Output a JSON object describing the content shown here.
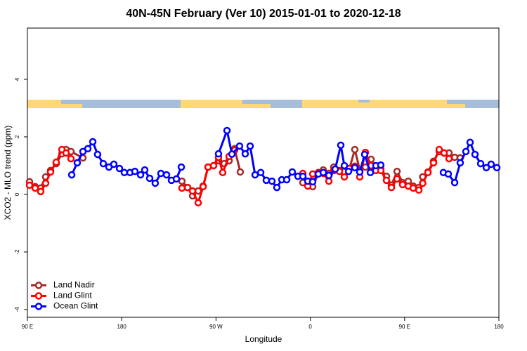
{
  "chart_data": {
    "type": "line",
    "title": "40N-45N February (Ver 10)   2015-01-01 to 2020-12-18",
    "x_label": "Longitude",
    "y_label": "XCO2 - MLO trend (ppm)",
    "xlim": [
      90,
      540
    ],
    "ylim": [
      -4.27,
      5.78
    ],
    "xticks": [
      {
        "value": 90,
        "label": "90 E"
      },
      180,
      {
        "value": 270,
        "label": "90 W"
      },
      {
        "value": 360,
        "label": "0"
      },
      {
        "value": 450,
        "label": "90 E"
      },
      {
        "value": 540,
        "label": "180"
      }
    ],
    "yticks": [
      -4,
      -2,
      0,
      2,
      4
    ],
    "grid": false,
    "legend": "bottomleft",
    "series": [
      {
        "name": "Land Nadir",
        "color": "#a52a2a",
        "x": [
          92,
          97.4,
          102.7,
          107.4,
          112.1,
          117.5,
          122.9,
          126.9,
          131.6,
          143,
          null,
          237.5,
          242.9,
          247.6,
          253,
          257.7,
          262.4,
          267.7,
          272.4,
          277.8,
          282.5,
          287.8,
          293.2,
          null,
          352.9,
          357.6,
          362.3,
          367.7,
          372.4,
          377.7,
          382.4,
          387.8,
          392.5,
          397.2,
          402.5,
          407.2,
          412.6,
          418,
          422.6,
          427.3,
          432.7,
          437.4,
          442.8,
          448.1,
          453.5,
          458.2,
          463.6,
          467.3,
          472.3,
          477.6,
          483,
          487.7,
          492.4,
          497.8,
          503.1
        ],
        "values": [
          0.44,
          0.27,
          0.22,
          0.61,
          0.83,
          1.07,
          1.41,
          1.56,
          1.49,
          1.27,
          null,
          0.46,
          0.24,
          -0.05,
          0.12,
          0.29,
          0.95,
          1.0,
          1.17,
          1.07,
          1.17,
          1.59,
          0.78,
          null,
          0.41,
          0.32,
          0.27,
          0.73,
          0.85,
          0.73,
          0.95,
          0.83,
          0.98,
          0.88,
          1.56,
          0.85,
          0.95,
          1.22,
          0.95,
          0.88,
          0.63,
          0.32,
          0.8,
          0.41,
          0.46,
          0.29,
          0.24,
          0.61,
          0.78,
          1.15,
          1.49,
          1.44,
          1.44,
          1.29,
          1.27
        ]
      },
      {
        "name": "Land Glint",
        "color": "#ff0000",
        "x": [
          92,
          97.4,
          102.7,
          107.4,
          112.1,
          117.5,
          122.9,
          126.9,
          131.6,
          null,
          237.5,
          242.9,
          247.6,
          253,
          257.7,
          262.4,
          267.7,
          272.4,
          276.4,
          282.5,
          287.8,
          null,
          352.9,
          357.6,
          362.3,
          367.7,
          372.4,
          377.7,
          382.4,
          387.8,
          392.5,
          397.2,
          402.5,
          407.2,
          412.6,
          418,
          422.6,
          427.3,
          432.7,
          437.4,
          442.8,
          448.1,
          453.5,
          458.2,
          463.6,
          467.3,
          472.3,
          477.6,
          483,
          487.7,
          492.4
        ],
        "values": [
          0.32,
          0.22,
          0.1,
          0.39,
          0.78,
          1.12,
          1.56,
          1.44,
          1.24,
          null,
          0.22,
          0.24,
          0.12,
          -0.29,
          0.27,
          0.95,
          1.0,
          1.29,
          0.76,
          1.32,
          1.54,
          null,
          0.73,
          0.29,
          0.71,
          0.76,
          0.73,
          0.46,
          0.83,
          0.8,
          0.61,
          0.9,
          0.98,
          0.61,
          1.46,
          1.0,
          0.83,
          0.83,
          0.49,
          0.24,
          0.54,
          0.34,
          0.29,
          0.22,
          0.15,
          0.39,
          0.76,
          1.1,
          1.56,
          1.44,
          1.24
        ]
      },
      {
        "name": "Ocean Glint",
        "color": "#0000ff",
        "x": [
          132.3,
          137.6,
          143,
          147.7,
          152.4,
          157,
          162.4,
          167.8,
          172.5,
          177.9,
          182.5,
          187.9,
          192.6,
          198,
          202,
          206.7,
          212,
          217.4,
          222.8,
          227.5,
          232.2,
          236.9,
          null,
          272.4,
          280.5,
          285.2,
          292.5,
          297.9,
          302.6,
          307.3,
          312.7,
          318,
          323.4,
          328.1,
          332.8,
          337.5,
          342.8,
          348.2,
          352.9,
          357.6,
          362.3,
          367.7,
          372.4,
          377.7,
          383.8,
          389.1,
          392.5,
          396.5,
          402.5,
          407.2,
          411.9,
          417.3,
          422.6,
          427.3,
          null,
          487,
          491.7,
          497.8,
          503.1,
          508.5,
          512.5,
          517.2,
          522.6,
          528,
          532.6,
          538
        ],
        "values": [
          0.68,
          1.1,
          1.49,
          1.59,
          1.83,
          1.39,
          1.07,
          0.95,
          1.05,
          0.9,
          0.76,
          0.76,
          0.8,
          0.68,
          0.85,
          0.56,
          0.39,
          0.73,
          0.68,
          0.49,
          0.54,
          0.95,
          null,
          1.41,
          2.22,
          1.4,
          1.68,
          1.41,
          1.68,
          0.68,
          0.76,
          0.49,
          0.46,
          0.24,
          0.51,
          0.51,
          0.78,
          0.63,
          0.63,
          0.46,
          0.44,
          0.71,
          0.76,
          0.66,
          0.88,
          1.71,
          1.0,
          0.8,
          0.93,
          0.78,
          1.39,
          0.76,
          1.0,
          1.02,
          null,
          0.76,
          0.71,
          0.41,
          1.1,
          1.49,
          1.81,
          1.39,
          1.07,
          0.93,
          1.05,
          0.93
        ]
      }
    ]
  }
}
